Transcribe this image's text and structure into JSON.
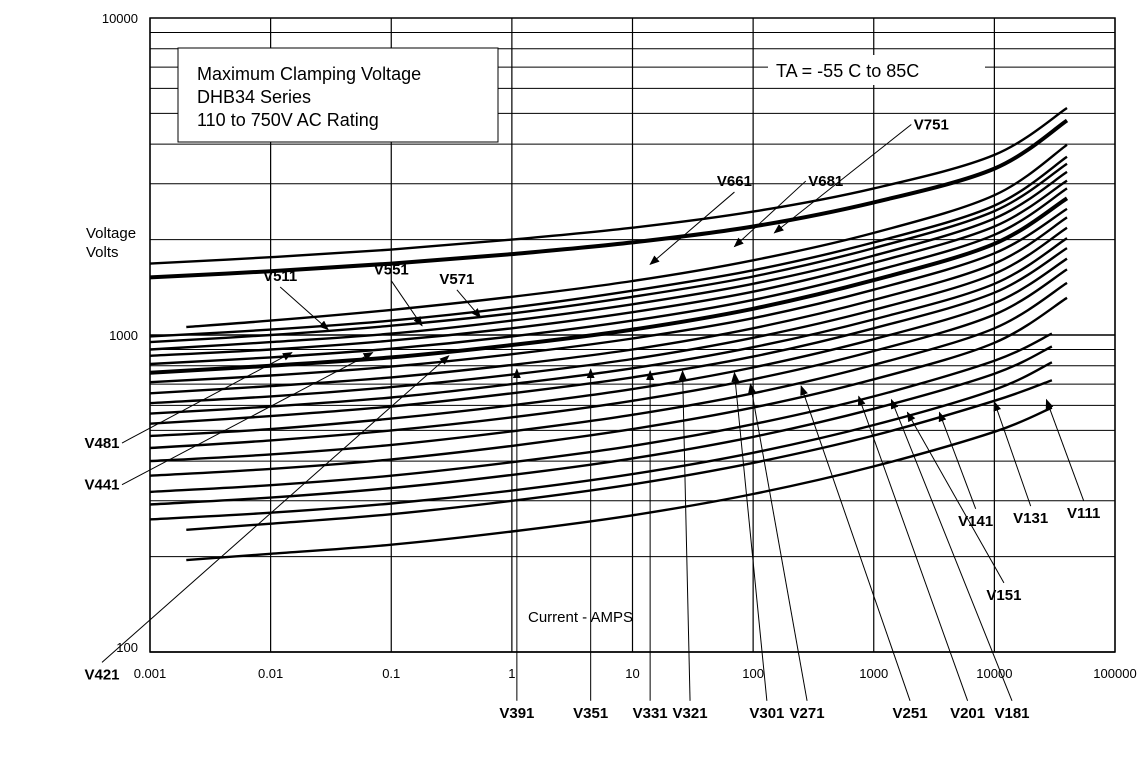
{
  "chart_data": {
    "type": "line",
    "title_box": [
      "Maximum Clamping Voltage",
      "DHB34  Series",
      "110 to 750V AC Rating"
    ],
    "condition": "TA = -55 C to 85C",
    "ylabel_lines": [
      "Voltage",
      "Volts"
    ],
    "xlabel": "Current  - AMPS",
    "x_scale": "log",
    "y_scale": "log",
    "xlim": [
      0.001,
      100000
    ],
    "ylim": [
      100,
      10000
    ],
    "x_ticks": [
      "0.001",
      "0.01",
      "0.1",
      "1",
      "10",
      "100",
      "1000",
      "10000",
      "100000"
    ],
    "y_ticks": [
      "100",
      "1000",
      "10000"
    ],
    "grid": true,
    "series": [
      {
        "name": "V751",
        "x": [
          0.001,
          0.01,
          0.1,
          1,
          10,
          100,
          1000,
          10000,
          40000
        ],
        "y": [
          1680,
          1760,
          1860,
          2000,
          2180,
          2450,
          2900,
          3700,
          5200
        ]
      },
      {
        "name": "V681",
        "x": [
          0.001,
          0.01,
          0.1,
          1,
          10,
          100,
          1000,
          10000,
          40000
        ],
        "y": [
          1520,
          1590,
          1680,
          1800,
          1960,
          2200,
          2620,
          3350,
          4750
        ]
      },
      {
        "name": "V661",
        "x": [
          0.002,
          0.01,
          0.1,
          1,
          10,
          100,
          1000,
          10000,
          40000
        ],
        "y": [
          1060,
          1110,
          1200,
          1320,
          1480,
          1720,
          2100,
          2760,
          3980
        ]
      },
      {
        "name": "V571",
        "x": [
          0.001,
          0.01,
          0.1,
          1,
          10,
          100,
          1000,
          10000,
          40000
        ],
        "y": [
          990,
          1040,
          1110,
          1220,
          1380,
          1600,
          1960,
          2560,
          3650
        ]
      },
      {
        "name": "V551",
        "x": [
          0.001,
          0.01,
          0.1,
          1,
          10,
          100,
          1000,
          10000,
          40000
        ],
        "y": [
          950,
          1000,
          1070,
          1170,
          1320,
          1530,
          1880,
          2460,
          3470
        ]
      },
      {
        "name": "V511",
        "x": [
          0.001,
          0.01,
          0.1,
          1,
          10,
          100,
          1000,
          10000,
          40000
        ],
        "y": [
          900,
          950,
          1010,
          1110,
          1250,
          1450,
          1780,
          2330,
          3270
        ]
      },
      {
        "name": "V481",
        "x": [
          0.001,
          0.01,
          0.1,
          1,
          10,
          100,
          1000,
          10000,
          40000
        ],
        "y": [
          860,
          900,
          960,
          1050,
          1180,
          1370,
          1690,
          2200,
          3070
        ]
      },
      {
        "name": "V441",
        "x": [
          0.001,
          0.01,
          0.1,
          1,
          10,
          100,
          1000,
          10000,
          40000
        ],
        "y": [
          810,
          850,
          905,
          990,
          1110,
          1290,
          1590,
          2070,
          2900
        ]
      },
      {
        "name": "V421",
        "x": [
          0.001,
          0.01,
          0.1,
          1,
          10,
          100,
          1000,
          10000,
          40000
        ],
        "y": [
          760,
          800,
          850,
          930,
          1040,
          1210,
          1490,
          1940,
          2700
        ]
      },
      {
        "name": "V391",
        "x": [
          0.001,
          0.01,
          0.1,
          1,
          10,
          100,
          1000,
          10000,
          40000
        ],
        "y": [
          710,
          745,
          795,
          870,
          975,
          1130,
          1390,
          1810,
          2500
        ]
      },
      {
        "name": "V351",
        "x": [
          0.001,
          0.01,
          0.1,
          1,
          10,
          100,
          1000,
          10000,
          40000
        ],
        "y": [
          655,
          690,
          735,
          805,
          900,
          1050,
          1290,
          1680,
          2350
        ]
      },
      {
        "name": "V331",
        "x": [
          0.001,
          0.01,
          0.1,
          1,
          10,
          100,
          1000,
          10000,
          40000
        ],
        "y": [
          610,
          640,
          685,
          750,
          840,
          980,
          1200,
          1560,
          2180
        ]
      },
      {
        "name": "V321",
        "x": [
          0.001,
          0.01,
          0.1,
          1,
          10,
          100,
          1000,
          10000,
          40000
        ],
        "y": [
          565,
          595,
          635,
          700,
          785,
          915,
          1120,
          1450,
          2020
        ]
      },
      {
        "name": "V301",
        "x": [
          0.001,
          0.01,
          0.1,
          1,
          10,
          100,
          1000,
          10000,
          40000
        ],
        "y": [
          525,
          555,
          595,
          655,
          735,
          855,
          1050,
          1360,
          1880
        ]
      },
      {
        "name": "V271",
        "x": [
          0.001,
          0.01,
          0.1,
          1,
          10,
          100,
          1000,
          10000,
          40000
        ],
        "y": [
          480,
          505,
          545,
          600,
          675,
          790,
          970,
          1260,
          1740
        ]
      },
      {
        "name": "V251",
        "x": [
          0.001,
          0.01,
          0.1,
          1,
          10,
          100,
          1000,
          10000,
          40000
        ],
        "y": [
          440,
          465,
          500,
          550,
          620,
          725,
          890,
          1160,
          1610
        ]
      },
      {
        "name": "V201",
        "x": [
          0.001,
          0.01,
          0.1,
          1,
          10,
          100,
          1000,
          10000,
          40000
        ],
        "y": [
          400,
          420,
          450,
          497,
          560,
          655,
          805,
          1050,
          1460
        ]
      },
      {
        "name": "V181",
        "x": [
          0.001,
          0.01,
          0.1,
          1,
          10,
          100,
          1000,
          10000,
          40000
        ],
        "y": [
          360,
          378,
          405,
          447,
          505,
          590,
          725,
          945,
          1310
        ]
      },
      {
        "name": "V151",
        "x": [
          0.001,
          0.01,
          0.1,
          1,
          10,
          100,
          1000,
          10000,
          30000
        ],
        "y": [
          320,
          336,
          360,
          397,
          447,
          523,
          640,
          830,
          1010
        ]
      },
      {
        "name": "V141",
        "x": [
          0.001,
          0.01,
          0.1,
          1,
          10,
          100,
          1000,
          10000,
          30000
        ],
        "y": [
          292,
          307,
          329,
          362,
          408,
          477,
          585,
          755,
          920
        ]
      },
      {
        "name": "V131",
        "x": [
          0.001,
          0.01,
          0.1,
          1,
          10,
          100,
          1000,
          10000,
          30000
        ],
        "y": [
          262,
          275,
          294,
          323,
          364,
          425,
          520,
          672,
          820
        ]
      },
      {
        "name": "V111",
        "x": [
          0.002,
          0.01,
          0.1,
          1,
          10,
          100,
          1000,
          10000,
          30000
        ],
        "y": [
          243,
          254,
          272,
          300,
          338,
          395,
          482,
          620,
          720
        ]
      },
      {
        "name": "",
        "x": [
          0.002,
          0.01,
          0.1,
          1,
          10,
          100,
          1000,
          10000,
          30000
        ],
        "y": [
          195,
          204,
          218,
          240,
          270,
          315,
          385,
          495,
          590
        ]
      }
    ],
    "annotations": [
      {
        "text": "V751",
        "x": 3000,
        "y": 4450,
        "tx": 150,
        "ty": 2100
      },
      {
        "text": "V681",
        "x": 400,
        "y": 2950,
        "tx": 70,
        "ty": 1900
      },
      {
        "text": "V661",
        "x": 70,
        "y": 2950,
        "tx": 14,
        "ty": 1670
      },
      {
        "text": "V571",
        "x": 0.35,
        "y": 1450,
        "tx": 0.55,
        "ty": 1135
      },
      {
        "text": "V551",
        "x": 0.1,
        "y": 1550,
        "tx": 0.18,
        "ty": 1070
      },
      {
        "text": "V511",
        "x": 0.012,
        "y": 1480,
        "tx": 0.03,
        "ty": 1040
      },
      {
        "text": "V481",
        "x": 0.0004,
        "y": 440,
        "tx": 0.015,
        "ty": 880
      },
      {
        "text": "V441",
        "x": 0.0004,
        "y": 325,
        "tx": 0.07,
        "ty": 880
      },
      {
        "text": "V421",
        "x": 0.0004,
        "y": 82,
        "tx": 0.3,
        "ty": 860
      },
      {
        "text": "V391",
        "x": 1.1,
        "y": 62,
        "tx": 1.1,
        "ty": 780
      },
      {
        "text": "V351",
        "x": 4.5,
        "y": 62,
        "tx": 4.5,
        "ty": 780
      },
      {
        "text": "V331",
        "x": 14,
        "y": 62,
        "tx": 14,
        "ty": 770
      },
      {
        "text": "V321",
        "x": 30,
        "y": 62,
        "tx": 26,
        "ty": 770
      },
      {
        "text": "V301",
        "x": 130,
        "y": 62,
        "tx": 70,
        "ty": 760
      },
      {
        "text": "V271",
        "x": 280,
        "y": 62,
        "tx": 95,
        "ty": 700
      },
      {
        "text": "V251",
        "x": 2000,
        "y": 62,
        "tx": 250,
        "ty": 690
      },
      {
        "text": "V201",
        "x": 6000,
        "y": 62,
        "tx": 750,
        "ty": 640
      },
      {
        "text": "V181",
        "x": 14000,
        "y": 62,
        "tx": 1400,
        "ty": 625
      },
      {
        "text": "V151",
        "x": 12000,
        "y": 146,
        "tx": 1900,
        "ty": 570
      },
      {
        "text": "V141",
        "x": 7000,
        "y": 250,
        "tx": 3500,
        "ty": 570
      },
      {
        "text": "V131",
        "x": 20000,
        "y": 255,
        "tx": 10000,
        "ty": 615
      },
      {
        "text": "V111",
        "x": 55000,
        "y": 265,
        "tx": 27000,
        "ty": 625
      }
    ]
  }
}
